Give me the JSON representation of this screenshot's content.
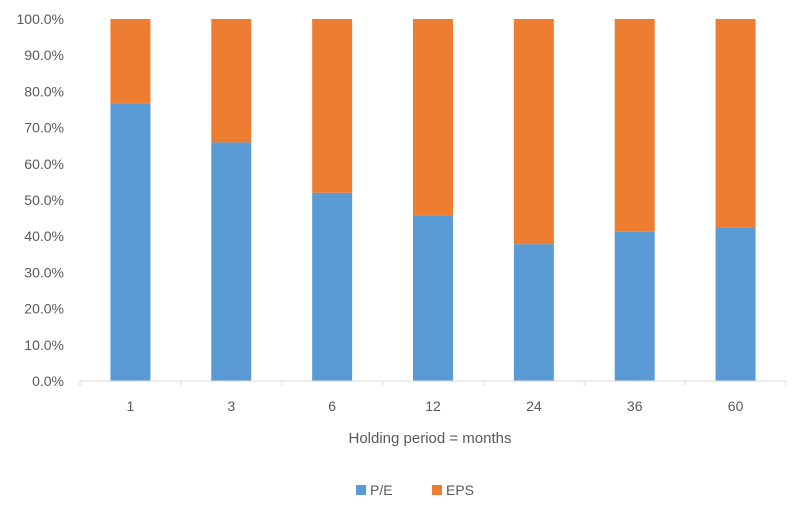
{
  "chart_data": {
    "type": "bar",
    "stacked": true,
    "title": "",
    "xlabel": "Holding period = months",
    "ylabel": "",
    "categories": [
      "1",
      "3",
      "6",
      "12",
      "24",
      "36",
      "60"
    ],
    "series": [
      {
        "name": "P/E",
        "color": "#5b9bd5",
        "values": [
          76.7,
          65.9,
          52.0,
          45.6,
          37.8,
          41.2,
          42.5
        ]
      },
      {
        "name": "EPS",
        "color": "#ed7d31",
        "values": [
          23.3,
          34.1,
          48.0,
          54.4,
          62.2,
          58.8,
          57.5
        ]
      }
    ],
    "yticks": [
      "0.0%",
      "10.0%",
      "20.0%",
      "30.0%",
      "40.0%",
      "50.0%",
      "60.0%",
      "70.0%",
      "80.0%",
      "90.0%",
      "100.0%"
    ],
    "ylim": [
      0,
      100
    ],
    "grid": false,
    "legend_position": "bottom"
  }
}
